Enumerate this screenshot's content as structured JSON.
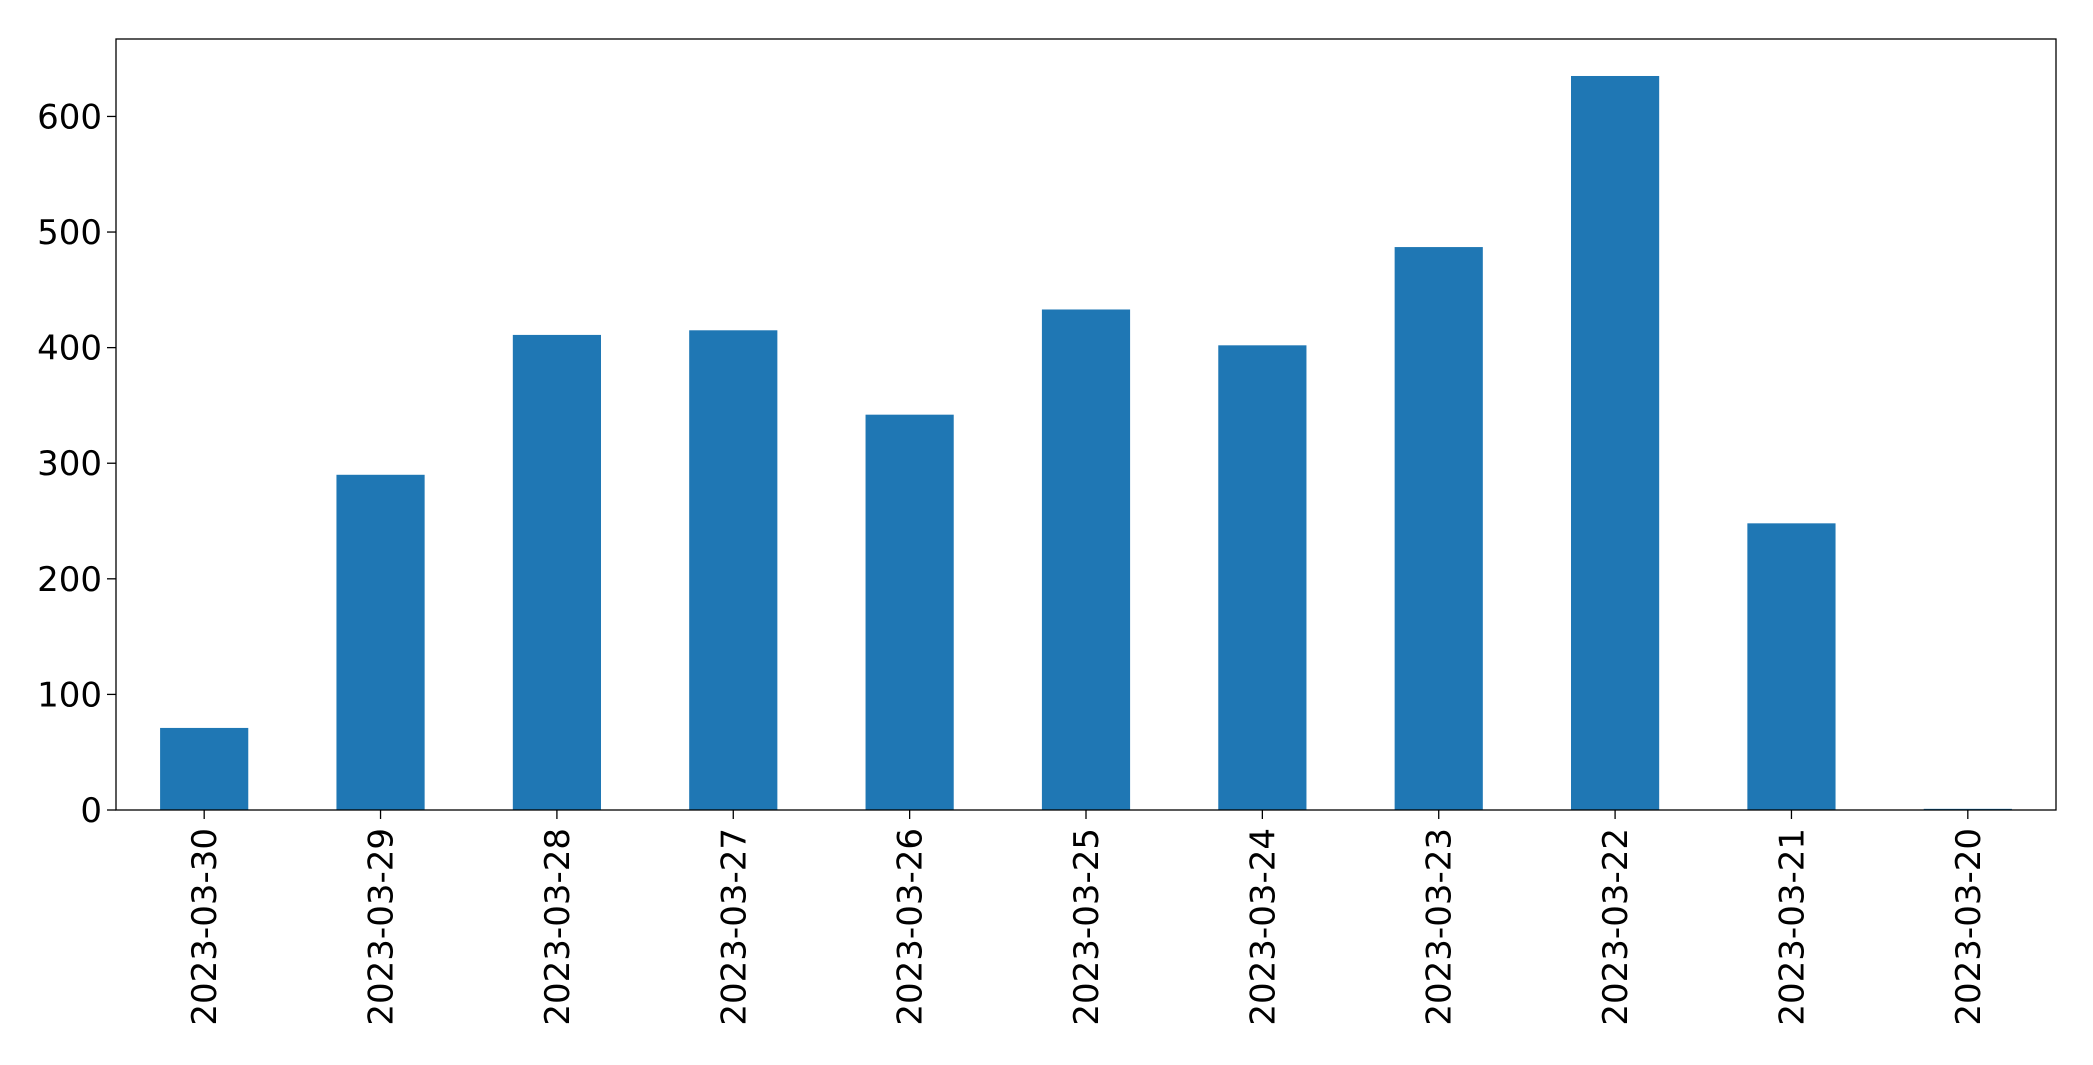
{
  "chart_data": {
    "type": "bar",
    "title": "",
    "xlabel": "",
    "ylabel": "",
    "categories": [
      "2023-03-30",
      "2023-03-29",
      "2023-03-28",
      "2023-03-27",
      "2023-03-26",
      "2023-03-25",
      "2023-03-24",
      "2023-03-23",
      "2023-03-22",
      "2023-03-21",
      "2023-03-20"
    ],
    "values": [
      71,
      290,
      411,
      415,
      342,
      433,
      402,
      487,
      635,
      248,
      1
    ],
    "ylim": [
      0,
      667
    ],
    "yticks": [
      0,
      100,
      200,
      300,
      400,
      500,
      600
    ],
    "grid": false,
    "legend": "none",
    "bar_color": "#1f77b4"
  }
}
